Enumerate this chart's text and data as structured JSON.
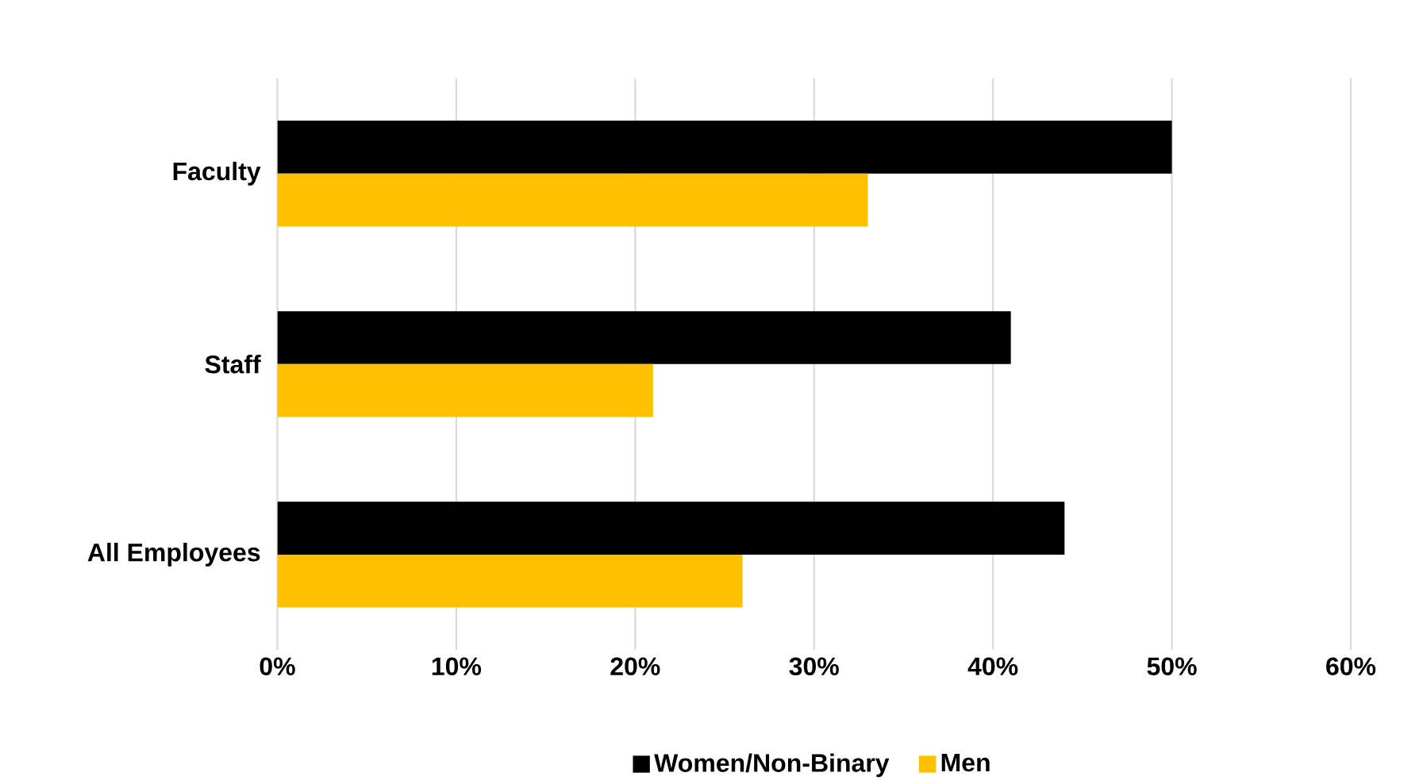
{
  "chart_data": {
    "type": "bar",
    "orientation": "horizontal",
    "categories": [
      "Faculty",
      "Staff",
      "All Employees"
    ],
    "series": [
      {
        "name": "Women/Non-Binary",
        "color": "#000000",
        "values": [
          50,
          41,
          44
        ]
      },
      {
        "name": "Men",
        "color": "#ffc000",
        "values": [
          33,
          21,
          26
        ]
      }
    ],
    "xlim": [
      0,
      60
    ],
    "xticks": [
      {
        "value": 0,
        "label": "0%"
      },
      {
        "value": 10,
        "label": "10%"
      },
      {
        "value": 20,
        "label": "20%"
      },
      {
        "value": 30,
        "label": "30%"
      },
      {
        "value": 40,
        "label": "40%"
      },
      {
        "value": 50,
        "label": "50%"
      },
      {
        "value": 60,
        "label": "60%"
      }
    ],
    "grid": "x",
    "legend": "bottom"
  }
}
